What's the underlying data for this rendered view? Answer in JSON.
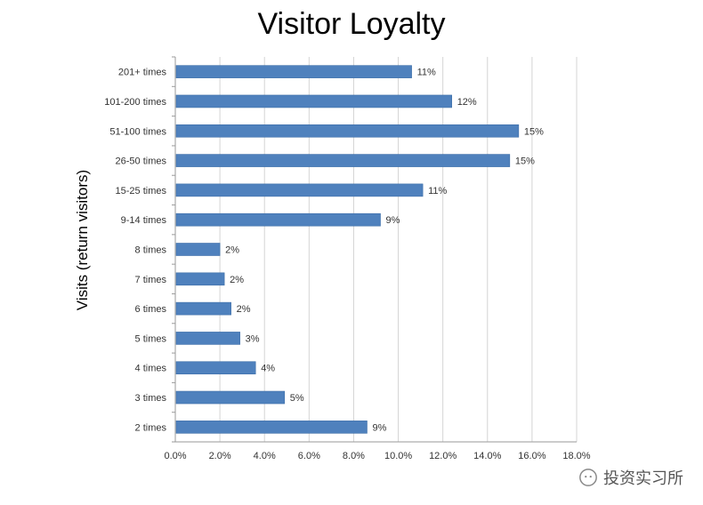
{
  "watermark": {
    "text": "投资实习所"
  },
  "chart_data": {
    "type": "bar",
    "orientation": "horizontal",
    "title": "Visitor Loyalty",
    "xlabel": "",
    "ylabel": "Visits (return visitors)",
    "xlim": [
      0,
      18
    ],
    "x_ticks": [
      "0.0%",
      "2.0%",
      "4.0%",
      "6.0%",
      "8.0%",
      "10.0%",
      "12.0%",
      "14.0%",
      "16.0%",
      "18.0%"
    ],
    "grid": "vertical",
    "bar_color": "#4F81BD",
    "categories": [
      "201+ times",
      "101-200 times",
      "51-100 times",
      "26-50 times",
      "15-25 times",
      "9-14 times",
      "8 times",
      "7 times",
      "6 times",
      "5 times",
      "4 times",
      "3 times",
      "2 times"
    ],
    "values": [
      10.6,
      12.4,
      15.4,
      15.0,
      11.1,
      9.2,
      2.0,
      2.2,
      2.5,
      2.9,
      3.6,
      4.9,
      8.6
    ],
    "data_labels": [
      "11%",
      "12%",
      "15%",
      "15%",
      "11%",
      "9%",
      "2%",
      "2%",
      "2%",
      "3%",
      "4%",
      "5%",
      "9%"
    ]
  }
}
